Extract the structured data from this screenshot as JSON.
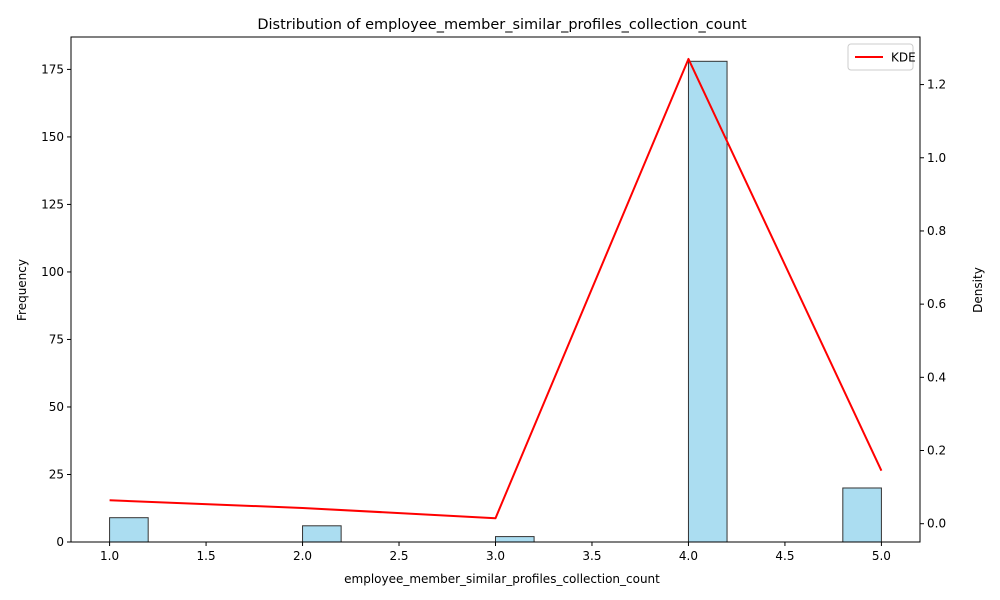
{
  "chart_data": {
    "type": "bar",
    "title": "Distribution of employee_member_similar_profiles_collection_count",
    "xlabel": "employee_member_similar_profiles_collection_count",
    "ylabel": "Frequency",
    "y2label": "Density",
    "xlim": [
      0.8,
      5.2
    ],
    "ylim": [
      0,
      187
    ],
    "y2lim": [
      -0.05,
      1.33
    ],
    "xticks": [
      "1.0",
      "1.5",
      "2.0",
      "2.5",
      "3.0",
      "3.5",
      "4.0",
      "4.5",
      "5.0"
    ],
    "yticks": [
      "0",
      "25",
      "50",
      "75",
      "100",
      "125",
      "150",
      "175"
    ],
    "y2ticks": [
      "0.0",
      "0.2",
      "0.4",
      "0.6",
      "0.8",
      "1.0",
      "1.2"
    ],
    "grid": false,
    "histogram": {
      "bin_width": 0.2,
      "bins": [
        {
          "start": 1.0,
          "count": 9
        },
        {
          "start": 1.2,
          "count": 0
        },
        {
          "start": 1.4,
          "count": 0
        },
        {
          "start": 1.6,
          "count": 0
        },
        {
          "start": 1.8,
          "count": 0
        },
        {
          "start": 2.0,
          "count": 6
        },
        {
          "start": 2.2,
          "count": 0
        },
        {
          "start": 2.4,
          "count": 0
        },
        {
          "start": 2.6,
          "count": 0
        },
        {
          "start": 2.8,
          "count": 0
        },
        {
          "start": 3.0,
          "count": 2
        },
        {
          "start": 3.2,
          "count": 0
        },
        {
          "start": 3.4,
          "count": 0
        },
        {
          "start": 3.6,
          "count": 0
        },
        {
          "start": 3.8,
          "count": 0
        },
        {
          "start": 4.0,
          "count": 178
        },
        {
          "start": 4.2,
          "count": 0
        },
        {
          "start": 4.4,
          "count": 0
        },
        {
          "start": 4.6,
          "count": 0
        },
        {
          "start": 4.8,
          "count": 20
        }
      ],
      "color": "#87ceeb",
      "edgecolor": "#333333"
    },
    "series": [
      {
        "name": "KDE",
        "axis": "right",
        "color": "#ff0000",
        "x": [
          1.0,
          2.0,
          3.0,
          4.0,
          5.0
        ],
        "values": [
          0.064,
          0.043,
          0.015,
          1.27,
          0.145
        ]
      }
    ],
    "legend": "top-right"
  }
}
